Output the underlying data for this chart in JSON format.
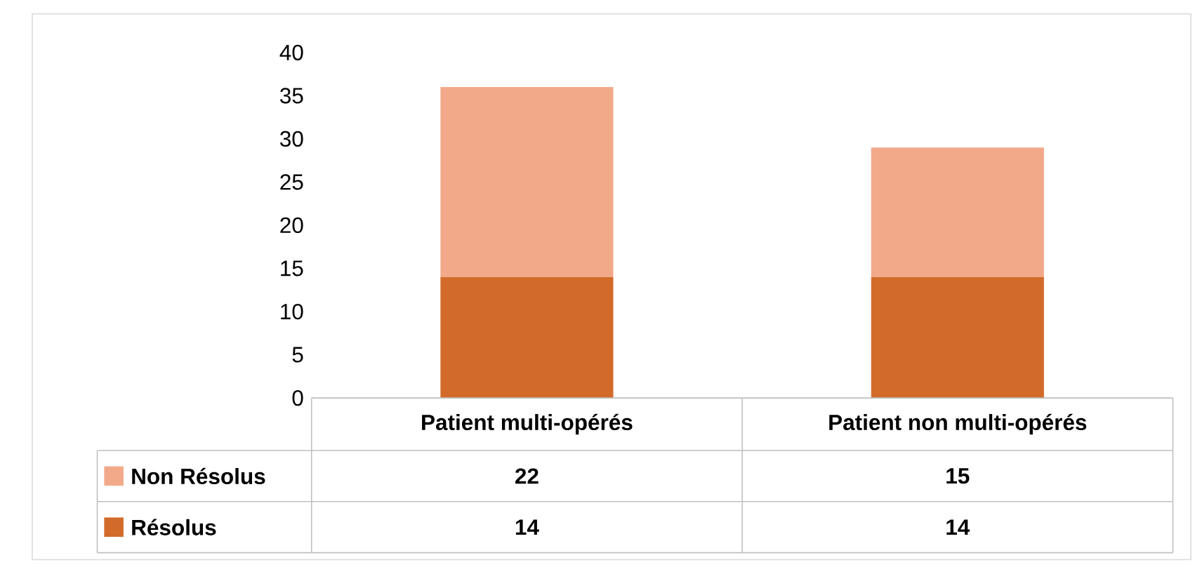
{
  "chart_data": {
    "type": "bar",
    "stacked": true,
    "categories": [
      "Patient multi-opérés",
      "Patient non multi-opérés"
    ],
    "series": [
      {
        "name": "Résolus",
        "color": "#d26b2a",
        "values": [
          14,
          14
        ]
      },
      {
        "name": "Non Résolus",
        "color": "#f2a98a",
        "values": [
          22,
          15
        ]
      }
    ],
    "ylim": [
      0,
      40
    ],
    "yticks": [
      0,
      5,
      10,
      15,
      20,
      25,
      30,
      35,
      40
    ],
    "data_labels": true,
    "legend": "bottom",
    "grid": false
  }
}
